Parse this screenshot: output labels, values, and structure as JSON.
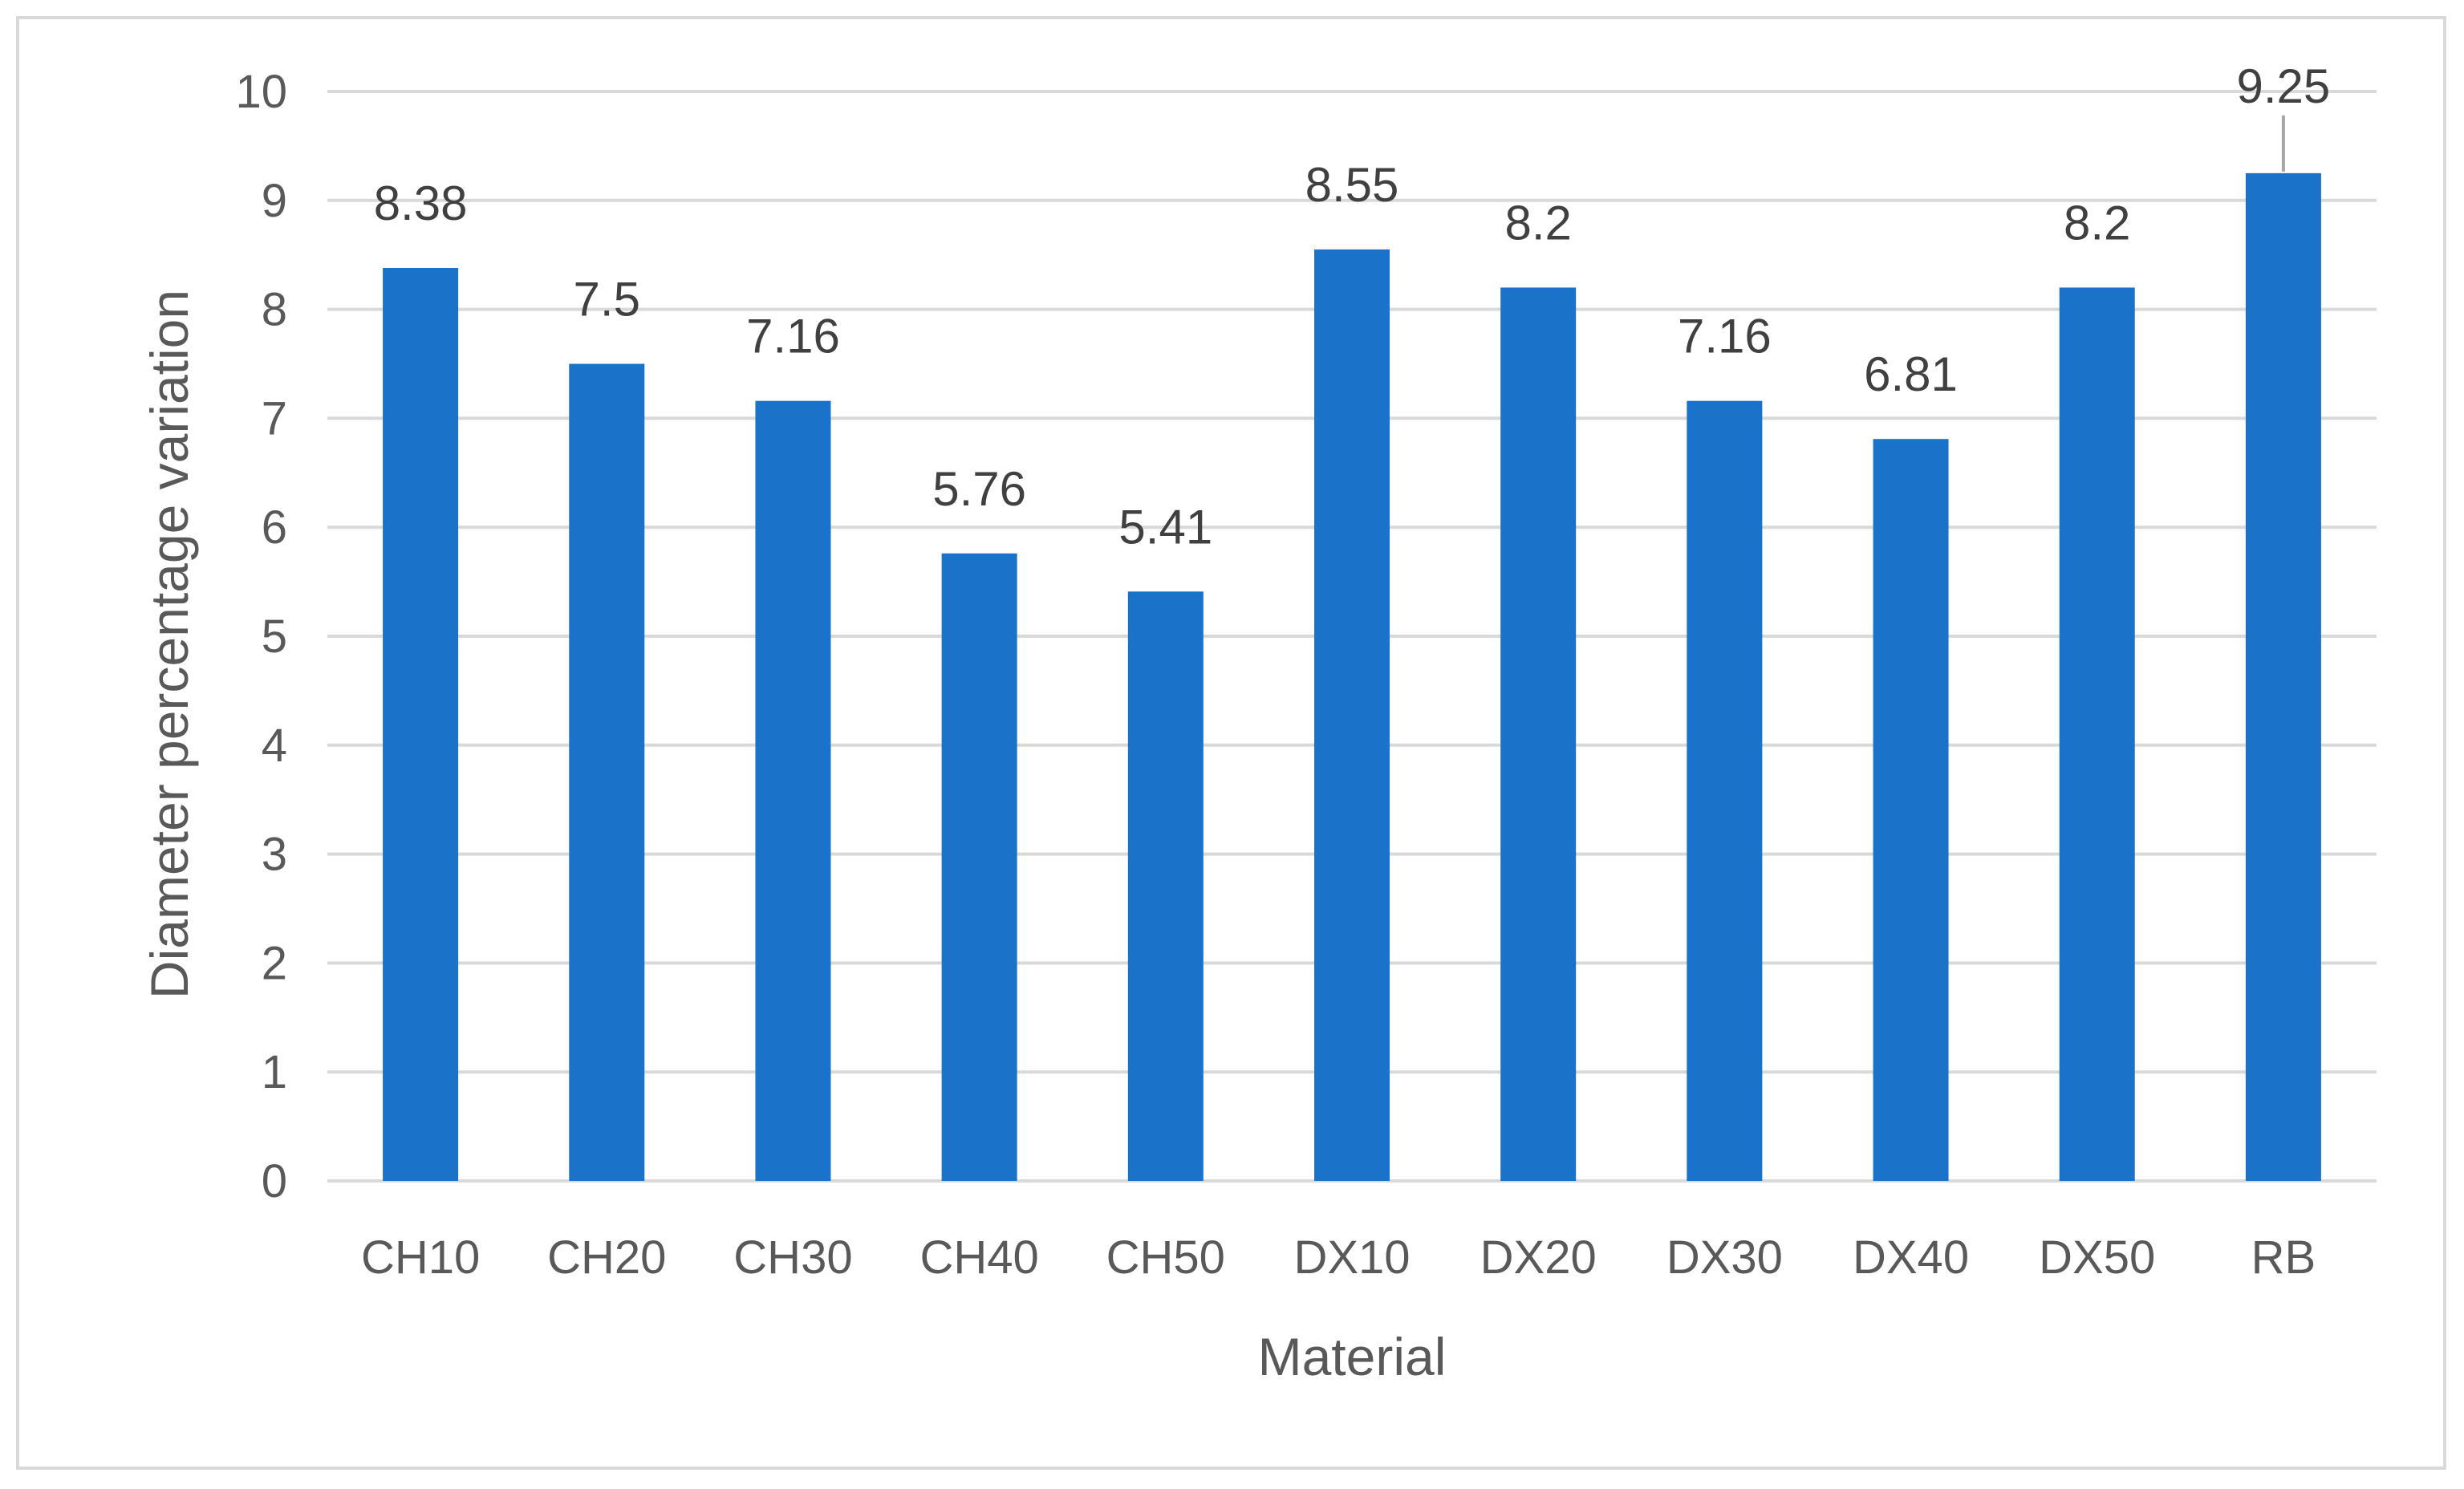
{
  "chart_data": {
    "type": "bar",
    "title": "",
    "xlabel": "Material",
    "ylabel": "Diameter percentage variation",
    "categories": [
      "CH10",
      "CH20",
      "CH30",
      "CH40",
      "CH50",
      "DX10",
      "DX20",
      "DX30",
      "DX40",
      "DX50",
      "RB"
    ],
    "values": [
      8.38,
      7.5,
      7.16,
      5.76,
      5.41,
      8.55,
      8.2,
      7.16,
      6.81,
      8.2,
      9.25
    ],
    "data_labels": [
      "8.38",
      "7.5",
      "7.16",
      "5.76",
      "5.41",
      "8.55",
      "8.2",
      "7.16",
      "6.81",
      "8.2",
      "9.25"
    ],
    "ylim": [
      0,
      10
    ],
    "yticks": [
      0,
      1,
      2,
      3,
      4,
      5,
      6,
      7,
      8,
      9,
      10
    ],
    "grid": true,
    "legend": "none",
    "colors": {
      "bar": "#1a73c8",
      "grid": "#d9d9d9",
      "text": "#595959",
      "label": "#404040",
      "border": "#d9d9d9"
    }
  }
}
